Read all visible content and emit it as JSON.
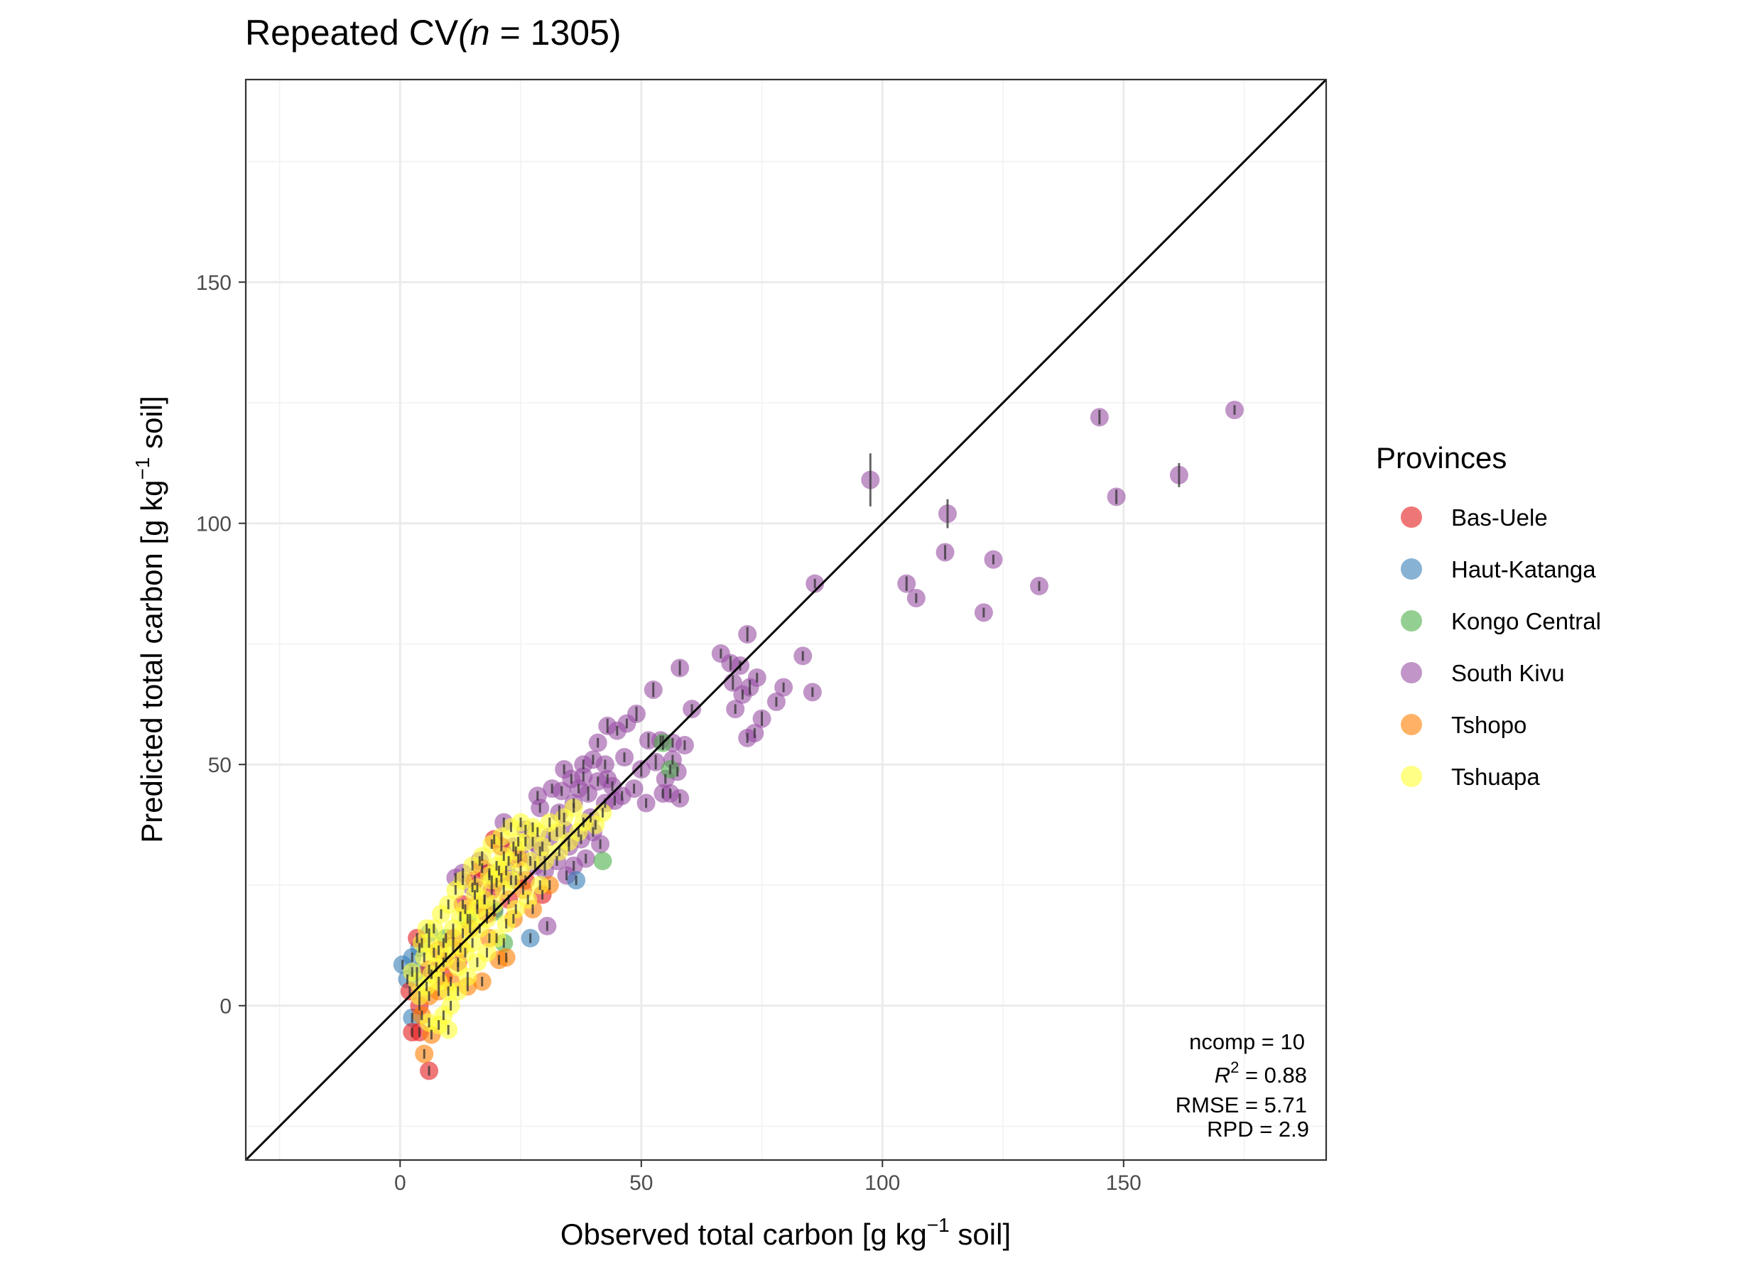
{
  "chart_data": {
    "type": "scatter",
    "title": {
      "prefix": "Repeated CV",
      "n_symbol": "n",
      "n_value": " = 1305)",
      "open_paren": "("
    },
    "xlabel": {
      "before": "Observed total carbon [g kg",
      "sup": "−1",
      "after": " soil]"
    },
    "ylabel": {
      "before": "Predicted total carbon [g kg",
      "sup": "−1",
      "after": " soil]"
    },
    "xlim": [
      -32,
      192
    ],
    "ylim": [
      -32,
      192
    ],
    "x_ticks": [
      0,
      50,
      100,
      150
    ],
    "y_ticks": [
      0,
      50,
      100,
      150
    ],
    "grid": true,
    "identity_line": true,
    "legend": {
      "title": "Provinces",
      "placement": "right",
      "items": [
        {
          "name": "Bas-Uele",
          "color": "#e41a1c"
        },
        {
          "name": "Haut-Katanga",
          "color": "#377eb8"
        },
        {
          "name": "Kongo Central",
          "color": "#4daf4a"
        },
        {
          "name": "South Kivu",
          "color": "#984ea3"
        },
        {
          "name": "Tshopo",
          "color": "#ff7f00"
        },
        {
          "name": "Tshuapa",
          "color": "#ffff33"
        }
      ]
    },
    "stats": {
      "ncomp": "ncomp = 10",
      "r2_symbol": "R",
      "r2_sup": "2",
      "r2_value": " = 0.88",
      "rmse": "RMSE = 5.71",
      "rpd": "RPD = 2.9"
    },
    "series": [
      {
        "name": "South Kivu",
        "color": "#984ea3",
        "points": [
          [
            97.5,
            109,
            5.5
          ],
          [
            113.5,
            102,
            3
          ],
          [
            145,
            122,
            1.5
          ],
          [
            148.5,
            105.5,
            1.5
          ],
          [
            161.5,
            110,
            2.5
          ],
          [
            173,
            123.5,
            1
          ],
          [
            113,
            94,
            1.5
          ],
          [
            123,
            92.5,
            1
          ],
          [
            105,
            87.5,
            1.5
          ],
          [
            107,
            84.5,
            1
          ],
          [
            121,
            81.5,
            1
          ],
          [
            132.5,
            87,
            1
          ],
          [
            86,
            87.5,
            1
          ],
          [
            72,
            77,
            1.5
          ],
          [
            66.5,
            73,
            1
          ],
          [
            68.5,
            71,
            1.5
          ],
          [
            70.5,
            70.5,
            1
          ],
          [
            83.5,
            72.5,
            1
          ],
          [
            58,
            70,
            1.5
          ],
          [
            52.5,
            65.5,
            1.5
          ],
          [
            60.5,
            61.5,
            1
          ],
          [
            69,
            67,
            1.5
          ],
          [
            71,
            64.5,
            1
          ],
          [
            72.5,
            66,
            1.5
          ],
          [
            74,
            68,
            1
          ],
          [
            79.5,
            66,
            1
          ],
          [
            85.5,
            65,
            1
          ],
          [
            78,
            63,
            1
          ],
          [
            75,
            59.5,
            1.5
          ],
          [
            69.5,
            61.5,
            1
          ],
          [
            72,
            55.5,
            1
          ],
          [
            73.5,
            56.5,
            1
          ],
          [
            49,
            60.5,
            1.5
          ],
          [
            47,
            58.5,
            1
          ],
          [
            43,
            58,
            1.5
          ],
          [
            41,
            54.5,
            1
          ],
          [
            45,
            57,
            1
          ],
          [
            51.5,
            55,
            1.5
          ],
          [
            54,
            55,
            1
          ],
          [
            56.5,
            54.5,
            1
          ],
          [
            59,
            54,
            1
          ],
          [
            53,
            50.5,
            1.5
          ],
          [
            56.5,
            51,
            1
          ],
          [
            57.5,
            48.5,
            1
          ],
          [
            55,
            47,
            1
          ],
          [
            50,
            49,
            1.5
          ],
          [
            46.5,
            51.5,
            1
          ],
          [
            48.5,
            45,
            1
          ],
          [
            41,
            46.5,
            1
          ],
          [
            39,
            44,
            1.5
          ],
          [
            37,
            45,
            1
          ],
          [
            35.5,
            47,
            1
          ],
          [
            38,
            47.5,
            1
          ],
          [
            33.5,
            44.5,
            1
          ],
          [
            31.5,
            45,
            1
          ],
          [
            28.5,
            43.5,
            1
          ],
          [
            29,
            41,
            1
          ],
          [
            33,
            40,
            1.5
          ],
          [
            36,
            42,
            1
          ],
          [
            39.5,
            39,
            1
          ],
          [
            42.5,
            42,
            1
          ],
          [
            44.5,
            42.5,
            1
          ],
          [
            51,
            42,
            1
          ],
          [
            54.5,
            44,
            1
          ],
          [
            56,
            44,
            1
          ],
          [
            58,
            43,
            1
          ],
          [
            34,
            36.5,
            1
          ],
          [
            37.5,
            34.5,
            1
          ],
          [
            40,
            36,
            1
          ],
          [
            41.5,
            33.5,
            1
          ],
          [
            35,
            33,
            1
          ],
          [
            31,
            35,
            1
          ],
          [
            29,
            32,
            1
          ],
          [
            27.5,
            34,
            1
          ],
          [
            26,
            36.5,
            1
          ],
          [
            32.5,
            30,
            1
          ],
          [
            30,
            28,
            1
          ],
          [
            28,
            29,
            1
          ],
          [
            25,
            31,
            1
          ],
          [
            23.5,
            33,
            1
          ],
          [
            21.5,
            38,
            1
          ],
          [
            24,
            26,
            1
          ],
          [
            22,
            28,
            1
          ],
          [
            20,
            25.5,
            1
          ],
          [
            18.5,
            27.5,
            1
          ],
          [
            16.5,
            30,
            1
          ],
          [
            15,
            24.5,
            1
          ],
          [
            17.5,
            22,
            1
          ],
          [
            19.5,
            20,
            1
          ],
          [
            30.5,
            16.5,
            1
          ],
          [
            11.5,
            26.5,
            1
          ],
          [
            13,
            27.5,
            1
          ],
          [
            38.5,
            30.5,
            1
          ],
          [
            36,
            29,
            1
          ],
          [
            34.5,
            27,
            1
          ],
          [
            44,
            45.5,
            1
          ],
          [
            46,
            43.5,
            1
          ],
          [
            43,
            47,
            1
          ],
          [
            38,
            50,
            1
          ],
          [
            40,
            51,
            1
          ],
          [
            42.5,
            50,
            1
          ],
          [
            34,
            49,
            1
          ]
        ]
      },
      {
        "name": "Kongo Central",
        "color": "#4daf4a",
        "points": [
          [
            42,
            30,
            0
          ],
          [
            54.5,
            54.5,
            1.5
          ],
          [
            56,
            49,
            1
          ],
          [
            19.5,
            19.5,
            1
          ],
          [
            21.5,
            13,
            1
          ],
          [
            14,
            18,
            1
          ],
          [
            9.5,
            14,
            1
          ]
        ]
      },
      {
        "name": "Haut-Katanga",
        "color": "#377eb8",
        "points": [
          [
            0.5,
            8.5,
            1
          ],
          [
            1.5,
            5.5,
            1
          ],
          [
            2.5,
            10,
            1
          ],
          [
            2.5,
            -2.5,
            1
          ],
          [
            27,
            14,
            1
          ],
          [
            36.5,
            26,
            1
          ],
          [
            4,
            12,
            1
          ],
          [
            6,
            15,
            1
          ],
          [
            3.5,
            7,
            1
          ]
        ]
      },
      {
        "name": "Bas-Uele",
        "color": "#e41a1c",
        "points": [
          [
            6,
            -13.5,
            1
          ],
          [
            2.5,
            -5.5,
            1
          ],
          [
            4,
            -5.5,
            1
          ],
          [
            3.5,
            14,
            1
          ],
          [
            6,
            7.5,
            1
          ],
          [
            8,
            11.5,
            1
          ],
          [
            11,
            14,
            1
          ],
          [
            13,
            21,
            1
          ],
          [
            15.5,
            26,
            1
          ],
          [
            17,
            28.5,
            1
          ],
          [
            19,
            24,
            1
          ],
          [
            19.5,
            34.5,
            1
          ],
          [
            21,
            33,
            1
          ],
          [
            24.5,
            30.5,
            1
          ],
          [
            4,
            0,
            1
          ],
          [
            2,
            3,
            1
          ],
          [
            9,
            6,
            1
          ],
          [
            12,
            9,
            1
          ],
          [
            18,
            19,
            1
          ],
          [
            22.5,
            22,
            1
          ],
          [
            26,
            26,
            1
          ],
          [
            29.5,
            23,
            1
          ]
        ]
      },
      {
        "name": "Tshopo",
        "color": "#ff7f00",
        "points": [
          [
            5,
            -10,
            1
          ],
          [
            6.5,
            -6,
            1
          ],
          [
            4.5,
            -2,
            1
          ],
          [
            8,
            3,
            1
          ],
          [
            10.5,
            5,
            1
          ],
          [
            14,
            4,
            1
          ],
          [
            17,
            5,
            1
          ],
          [
            20.5,
            9.5,
            1
          ],
          [
            22,
            10,
            1
          ],
          [
            18.5,
            14,
            1
          ],
          [
            14.5,
            16,
            1
          ],
          [
            23.5,
            18,
            1
          ],
          [
            25.5,
            24,
            1
          ],
          [
            21,
            26.5,
            1
          ],
          [
            16,
            21,
            1
          ],
          [
            12.5,
            12,
            1
          ],
          [
            9,
            9,
            1
          ],
          [
            27.5,
            20,
            1
          ],
          [
            31,
            25,
            1
          ],
          [
            6,
            2,
            1
          ]
        ]
      },
      {
        "name": "Tshuapa",
        "color": "#ffff33",
        "points": [
          [
            4,
            2,
            1
          ],
          [
            5.5,
            4,
            1
          ],
          [
            6.5,
            6.5,
            1
          ],
          [
            7.5,
            8,
            1
          ],
          [
            8,
            5,
            1
          ],
          [
            9.5,
            10,
            1
          ],
          [
            10,
            3,
            1
          ],
          [
            11,
            12,
            1
          ],
          [
            12,
            8,
            1
          ],
          [
            13,
            15,
            1
          ],
          [
            13.5,
            11,
            1
          ],
          [
            14.5,
            18,
            1
          ],
          [
            15,
            13,
            1
          ],
          [
            16,
            20,
            1
          ],
          [
            16.5,
            16,
            1
          ],
          [
            17.5,
            22,
            1
          ],
          [
            18,
            18,
            1
          ],
          [
            19,
            26,
            1
          ],
          [
            19.5,
            21,
            1
          ],
          [
            20.5,
            28,
            1
          ],
          [
            21.5,
            24,
            1
          ],
          [
            22.5,
            30,
            1
          ],
          [
            23,
            26,
            1
          ],
          [
            24,
            32,
            1
          ],
          [
            25,
            28,
            1
          ],
          [
            26,
            34,
            1
          ],
          [
            27,
            30,
            1
          ],
          [
            28.5,
            36,
            1
          ],
          [
            29.5,
            33,
            1
          ],
          [
            31,
            38,
            1
          ],
          [
            32.5,
            36,
            1
          ],
          [
            34,
            39,
            1
          ],
          [
            36,
            41,
            1
          ],
          [
            38,
            38,
            1
          ],
          [
            40.5,
            37.5,
            1
          ],
          [
            42,
            40,
            1
          ],
          [
            5,
            10,
            1
          ],
          [
            6,
            13,
            1
          ],
          [
            7,
            16,
            1
          ],
          [
            8.5,
            19,
            1
          ],
          [
            10,
            21,
            1
          ],
          [
            11.5,
            24,
            1
          ],
          [
            13,
            26,
            1
          ],
          [
            15,
            29,
            1
          ],
          [
            17,
            31,
            1
          ],
          [
            19,
            33.5,
            1
          ],
          [
            21,
            35,
            1
          ],
          [
            23,
            37,
            1
          ],
          [
            25,
            38,
            1
          ],
          [
            9,
            -2,
            1
          ],
          [
            10.5,
            0,
            1
          ],
          [
            12,
            3,
            1
          ],
          [
            14,
            6,
            1
          ],
          [
            16,
            9,
            1
          ],
          [
            18,
            11,
            1
          ],
          [
            20,
            14,
            1
          ],
          [
            22,
            17,
            1
          ],
          [
            24,
            20,
            1
          ],
          [
            26.5,
            22,
            1
          ],
          [
            29,
            25,
            1
          ],
          [
            6,
            -3.5,
            1
          ],
          [
            8,
            -4,
            1
          ],
          [
            10,
            -5,
            1
          ],
          [
            3.5,
            5,
            1
          ],
          [
            30,
            30,
            1
          ],
          [
            33,
            32,
            1
          ],
          [
            35,
            34,
            1
          ],
          [
            37,
            36,
            1
          ],
          [
            12.5,
            18.5,
            1
          ],
          [
            15.5,
            23,
            1
          ],
          [
            18.5,
            27,
            1
          ],
          [
            21.5,
            31,
            1
          ],
          [
            24.5,
            34,
            1
          ],
          [
            27.5,
            37,
            1
          ],
          [
            7,
            11,
            1
          ],
          [
            9,
            13,
            1
          ],
          [
            11,
            16,
            1
          ],
          [
            13.5,
            20,
            1
          ],
          [
            16,
            24.5,
            1
          ],
          [
            20,
            29,
            1
          ],
          [
            2.5,
            7,
            1
          ],
          [
            4.5,
            13,
            1
          ],
          [
            5.5,
            16,
            1
          ]
        ]
      }
    ]
  }
}
